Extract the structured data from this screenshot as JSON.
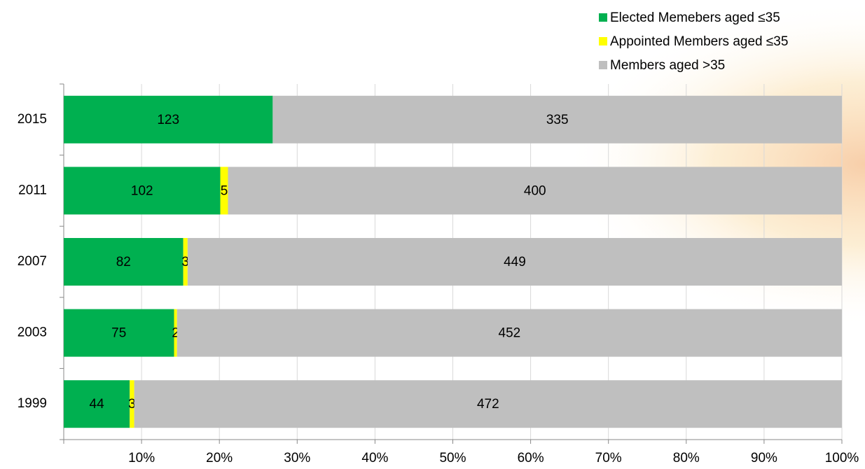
{
  "chart_data": {
    "type": "bar",
    "orientation": "horizontal",
    "stacking": "percent",
    "categories": [
      "2015",
      "2011",
      "2007",
      "2003",
      "1999"
    ],
    "series": [
      {
        "name": "Elected Memebers aged ≤35",
        "color": "#00b050",
        "values": [
          123,
          102,
          82,
          75,
          44
        ]
      },
      {
        "name": "Appointed Members aged ≤35",
        "color": "#ffff00",
        "values": [
          null,
          5,
          3,
          2,
          3
        ]
      },
      {
        "name": "Members aged >35",
        "color": "#bfbfbf",
        "values": [
          335,
          400,
          449,
          452,
          472
        ]
      }
    ],
    "xlim": [
      0,
      100
    ],
    "xticks": [
      {
        "value": 10,
        "label": "10%"
      },
      {
        "value": 20,
        "label": "20%"
      },
      {
        "value": 30,
        "label": "30%"
      },
      {
        "value": 40,
        "label": "40%"
      },
      {
        "value": 50,
        "label": "50%"
      },
      {
        "value": 60,
        "label": "60%"
      },
      {
        "value": 70,
        "label": "70%"
      },
      {
        "value": 80,
        "label": "80%"
      },
      {
        "value": 90,
        "label": "90%"
      },
      {
        "value": 100,
        "label": "100%"
      }
    ],
    "grid": true,
    "legend": "top-right"
  }
}
